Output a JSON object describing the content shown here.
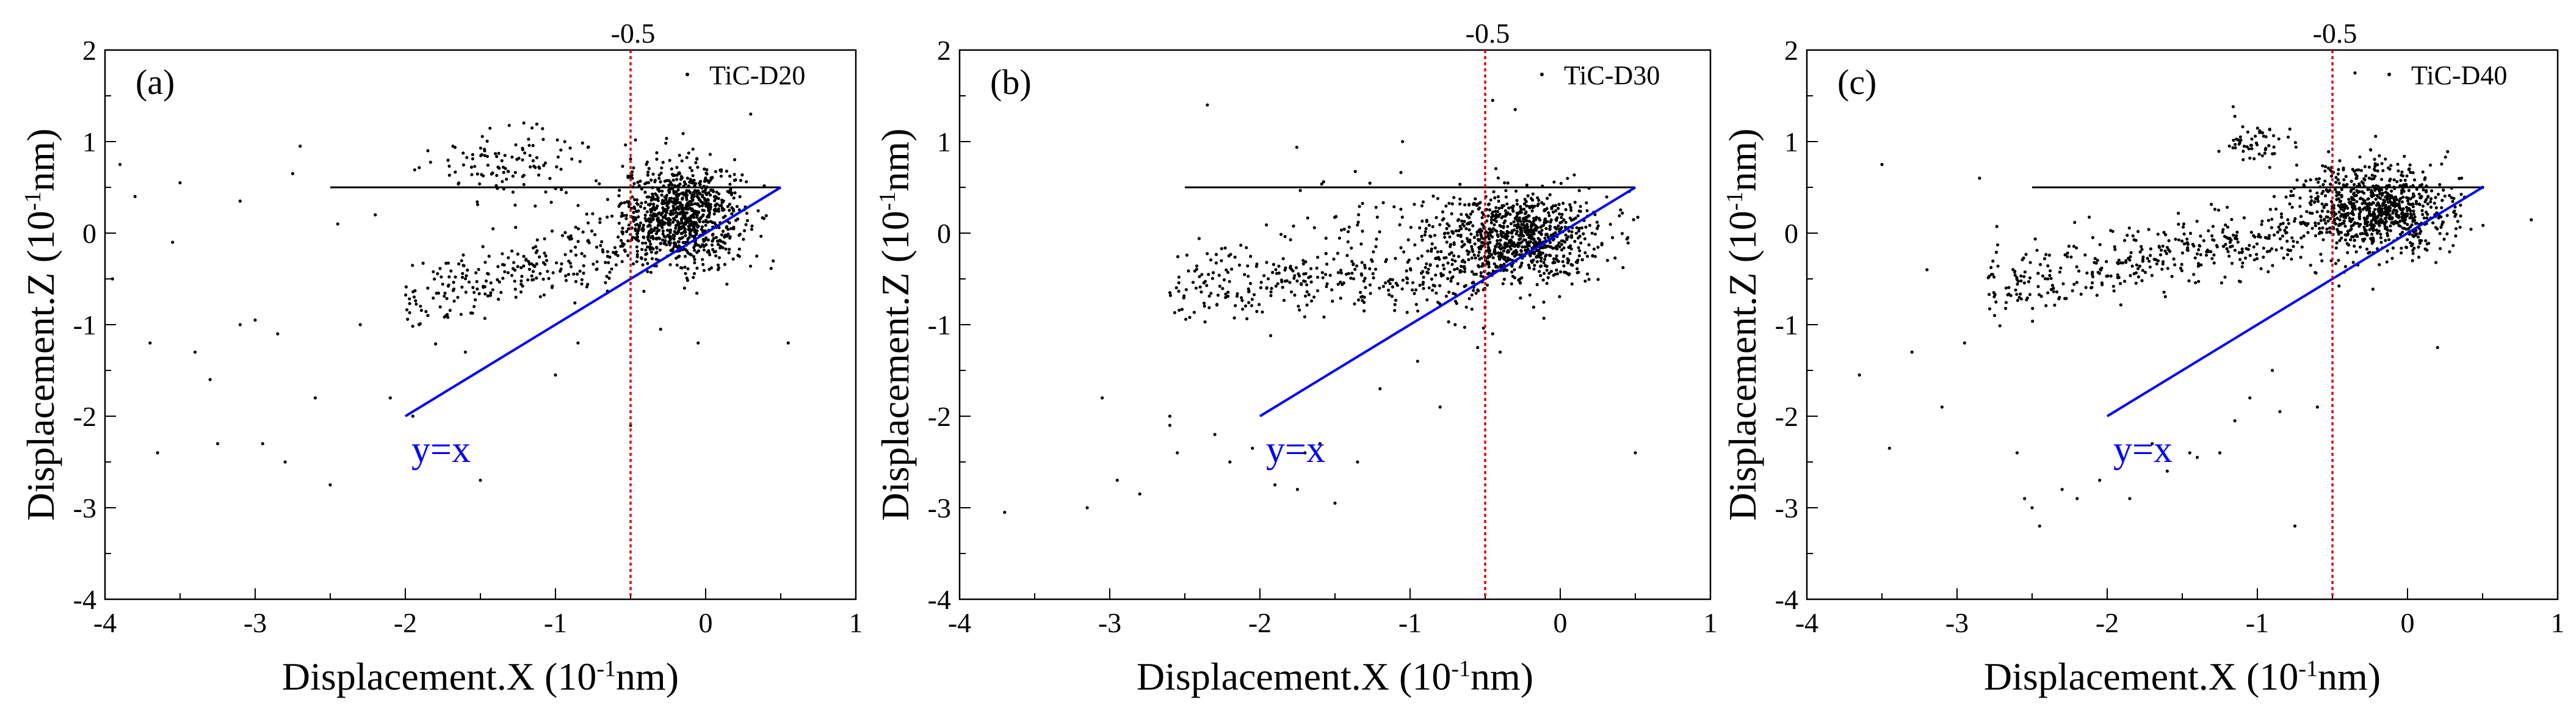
{
  "chart_data": [
    {
      "type": "scatter",
      "panel": "(a)",
      "legend": "TiC-D20",
      "xlabel": "Displacement.X (10-1nm)",
      "ylabel": "Displacement.Z (10-1nm)",
      "xlim": [
        -4,
        1
      ],
      "ylim": [
        -4,
        2
      ],
      "xticks": [
        "-4",
        "-3",
        "-2",
        "-1",
        "0",
        "1"
      ],
      "yticks": [
        "-4",
        "-3",
        "-2",
        "-1",
        "0",
        "1",
        "2"
      ],
      "ref_vline": {
        "x": -0.5,
        "label": "-0.5"
      },
      "hline": {
        "x_start": -2.5,
        "x_end": 0.5,
        "y": 0.5
      },
      "identity_line": {
        "x": [
          -2,
          0.5
        ],
        "label": "y=x"
      },
      "cluster": {
        "center": [
          -0.15,
          0.2
        ],
        "spread": [
          0.2,
          0.28
        ],
        "count": 900
      },
      "band": {
        "x_range": [
          -2.0,
          -0.3
        ],
        "y_at_start": -0.75,
        "y_at_end": 0.0,
        "count": 280
      },
      "upper_group": {
        "center": [
          -1.3,
          0.75
        ],
        "spread": [
          0.28,
          0.2
        ],
        "count": 110
      },
      "points": [
        [
          -3.95,
          -0.5
        ],
        [
          -3.8,
          0.4
        ],
        [
          -3.7,
          -1.2
        ],
        [
          -3.55,
          -0.1
        ],
        [
          -3.3,
          -1.6
        ],
        [
          -3.1,
          0.35
        ],
        [
          -3.0,
          -0.95
        ],
        [
          -2.95,
          -2.3
        ],
        [
          -2.8,
          -2.5
        ],
        [
          -2.7,
          0.95
        ],
        [
          -2.6,
          -1.8
        ],
        [
          -2.5,
          -2.75
        ],
        [
          -2.3,
          -1.0
        ],
        [
          -2.1,
          -1.8
        ],
        [
          -1.95,
          -2.0
        ],
        [
          -1.85,
          0.9
        ],
        [
          -1.5,
          -2.7
        ],
        [
          -0.85,
          -1.2
        ],
        [
          -0.5,
          -2.1
        ],
        [
          -0.05,
          -1.2
        ],
        [
          0.3,
          1.3
        ],
        [
          0.55,
          -1.2
        ],
        [
          -3.4,
          -1.3
        ],
        [
          -2.85,
          -1.1
        ],
        [
          -3.9,
          0.75
        ],
        [
          -3.65,
          -2.4
        ],
        [
          -3.25,
          -2.3
        ],
        [
          -2.75,
          0.65
        ],
        [
          -1.6,
          -1.3
        ],
        [
          -1.0,
          -1.55
        ],
        [
          -3.5,
          0.55
        ],
        [
          -3.1,
          -1.0
        ],
        [
          -2.45,
          0.1
        ],
        [
          -2.2,
          0.2
        ],
        [
          -1.85,
          -0.9
        ],
        [
          -0.3,
          -1.05
        ]
      ]
    },
    {
      "type": "scatter",
      "panel": "(b)",
      "legend": "TiC-D30",
      "xlabel": "Displacement.X (10-1nm)",
      "ylabel": "Displacement.Z (10-1nm)",
      "xlim": [
        -4,
        1
      ],
      "ylim": [
        -4,
        2
      ],
      "xticks": [
        "-4",
        "-3",
        "-2",
        "-1",
        "0",
        "1"
      ],
      "yticks": [
        "-4",
        "-3",
        "-2",
        "-1",
        "0",
        "1",
        "2"
      ],
      "ref_vline": {
        "x": -0.5,
        "label": "-0.5"
      },
      "hline": {
        "x_start": -2.5,
        "x_end": 0.5,
        "y": 0.5
      },
      "identity_line": {
        "x": [
          -2,
          0.5
        ],
        "label": "y=x"
      },
      "cluster": {
        "center": [
          -0.3,
          -0.05
        ],
        "spread": [
          0.28,
          0.24
        ],
        "count": 900
      },
      "band": {
        "x_range": [
          -2.6,
          -0.5
        ],
        "y_at_start": -0.55,
        "y_at_end": -0.5,
        "count": 320
      },
      "upper_group": {
        "center": [
          -1.3,
          0.0
        ],
        "spread": [
          0.3,
          0.35
        ],
        "count": 60
      },
      "points": [
        [
          -3.7,
          -3.05
        ],
        [
          -3.15,
          -3.0
        ],
        [
          -3.05,
          -1.8
        ],
        [
          -2.95,
          -2.7
        ],
        [
          -2.8,
          -2.85
        ],
        [
          -2.6,
          -2.1
        ],
        [
          -2.55,
          -2.4
        ],
        [
          -2.35,
          1.4
        ],
        [
          -2.2,
          -2.5
        ],
        [
          -2.05,
          -2.35
        ],
        [
          -1.9,
          -2.75
        ],
        [
          -1.7,
          -2.4
        ],
        [
          -1.5,
          -2.95
        ],
        [
          -1.35,
          -2.5
        ],
        [
          -1.2,
          -1.7
        ],
        [
          -1.05,
          1.0
        ],
        [
          -0.8,
          -1.9
        ],
        [
          -0.55,
          -1.25
        ],
        [
          -0.45,
          1.45
        ],
        [
          -0.3,
          1.35
        ],
        [
          0.5,
          -2.4
        ],
        [
          0.45,
          -0.05
        ],
        [
          -2.6,
          -2.0
        ],
        [
          -2.3,
          -2.2
        ],
        [
          -1.75,
          -2.8
        ],
        [
          -1.6,
          -2.3
        ],
        [
          -0.95,
          -1.4
        ],
        [
          -0.7,
          -1.0
        ],
        [
          -0.45,
          -1.1
        ],
        [
          -0.4,
          -1.3
        ]
      ]
    },
    {
      "type": "scatter",
      "panel": "(c)",
      "legend": "TiC-D40",
      "xlabel": "Displacement.X (10-1nm)",
      "ylabel": "Displacement.Z (10-1nm)",
      "xlim": [
        -4,
        1
      ],
      "ylim": [
        -4,
        2
      ],
      "xticks": [
        "-4",
        "-3",
        "-2",
        "-1",
        "0",
        "1"
      ],
      "yticks": [
        "-4",
        "-3",
        "-2",
        "-1",
        "0",
        "1",
        "2"
      ],
      "ref_vline": {
        "x": -0.5,
        "label": "-0.5"
      },
      "hline": {
        "x_start": -2.5,
        "x_end": 0.5,
        "y": 0.5
      },
      "identity_line": {
        "x": [
          -2,
          0.5
        ],
        "label": "y=x"
      },
      "cluster": {
        "center": [
          -0.2,
          0.25
        ],
        "spread": [
          0.25,
          0.25
        ],
        "count": 800
      },
      "band": {
        "x_range": [
          -2.8,
          -0.4
        ],
        "y_at_start": -0.6,
        "y_at_end": 0.1,
        "count": 420
      },
      "upper_group": {
        "center": [
          -1.0,
          1.0
        ],
        "spread": [
          0.12,
          0.12
        ],
        "count": 55
      },
      "points": [
        [
          -3.65,
          -1.55
        ],
        [
          -3.5,
          0.75
        ],
        [
          -3.45,
          -2.35
        ],
        [
          -3.3,
          -1.3
        ],
        [
          -3.2,
          -0.4
        ],
        [
          -2.85,
          0.6
        ],
        [
          -2.75,
          -0.9
        ],
        [
          -2.55,
          -2.9
        ],
        [
          -2.45,
          -3.2
        ],
        [
          -2.3,
          -2.8
        ],
        [
          -2.05,
          -2.7
        ],
        [
          -1.85,
          -2.9
        ],
        [
          -1.7,
          -2.3
        ],
        [
          -1.45,
          -2.4
        ],
        [
          -1.25,
          -2.4
        ],
        [
          -1.05,
          -1.8
        ],
        [
          -0.85,
          -1.95
        ],
        [
          -0.75,
          -3.2
        ],
        [
          -0.35,
          1.75
        ],
        [
          0.2,
          -1.25
        ],
        [
          0.5,
          0.5
        ],
        [
          -3.1,
          -1.9
        ],
        [
          -2.95,
          -1.2
        ],
        [
          -2.6,
          -2.4
        ],
        [
          -2.5,
          -3.0
        ],
        [
          -2.2,
          -2.9
        ],
        [
          -1.6,
          -2.6
        ],
        [
          -1.4,
          -2.45
        ],
        [
          -1.15,
          -2.05
        ],
        [
          -0.9,
          -1.5
        ],
        [
          -0.6,
          -1.9
        ]
      ]
    }
  ]
}
